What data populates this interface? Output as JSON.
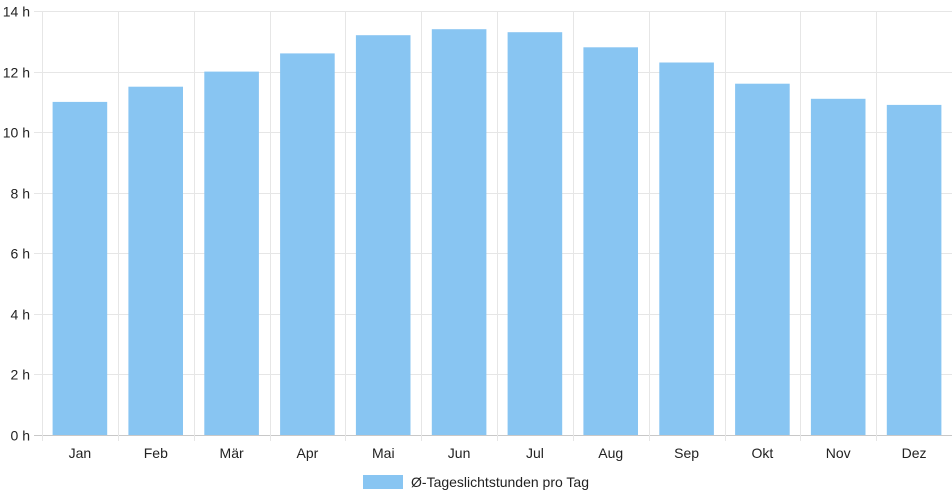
{
  "chart_data": {
    "type": "bar",
    "categories": [
      "Jan",
      "Feb",
      "Mär",
      "Apr",
      "Mai",
      "Jun",
      "Jul",
      "Aug",
      "Sep",
      "Okt",
      "Nov",
      "Dez"
    ],
    "series": [
      {
        "name": "Ø-Tageslichtstunden pro Tag",
        "values": [
          11.0,
          11.5,
          12.0,
          12.6,
          13.2,
          13.4,
          13.3,
          12.8,
          12.3,
          11.6,
          11.1,
          10.9
        ],
        "color": "#88c5f2"
      }
    ],
    "ylim": [
      0,
      14
    ],
    "yticks": [
      0,
      2,
      4,
      6,
      8,
      10,
      12,
      14
    ],
    "ytick_labels": [
      "0 h",
      "2 h",
      "4 h",
      "6 h",
      "8 h",
      "10 h",
      "12 h",
      "14 h"
    ],
    "grid": true,
    "legend_position": "bottom-center",
    "title": "",
    "xlabel": "",
    "ylabel": ""
  }
}
